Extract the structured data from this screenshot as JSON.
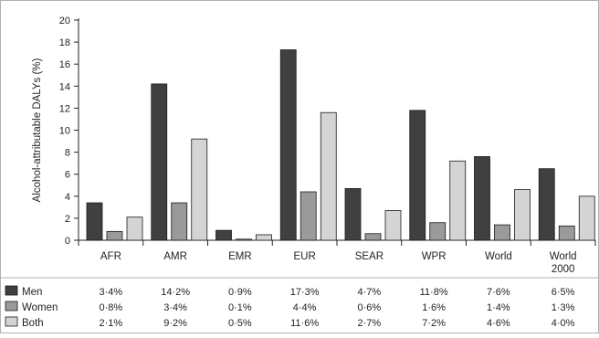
{
  "chart_data": {
    "type": "bar",
    "ylabel": "Alcohol-attributable DALYs (%)",
    "ylim": [
      0,
      20
    ],
    "yticks": [
      0,
      2,
      4,
      6,
      8,
      10,
      12,
      14,
      16,
      18,
      20
    ],
    "categories": [
      "AFR",
      "AMR",
      "EMR",
      "EUR",
      "SEAR",
      "WPR",
      "World",
      "World 2000"
    ],
    "series": [
      {
        "name": "Men",
        "color": "#404040",
        "values": [
          3.4,
          14.2,
          0.9,
          17.3,
          4.7,
          11.8,
          7.6,
          6.5
        ],
        "labels": [
          "3·4%",
          "14·2%",
          "0·9%",
          "17·3%",
          "4·7%",
          "11·8%",
          "7·6%",
          "6·5%"
        ]
      },
      {
        "name": "Women",
        "color": "#9a9a9a",
        "values": [
          0.8,
          3.4,
          0.1,
          4.4,
          0.6,
          1.6,
          1.4,
          1.3
        ],
        "labels": [
          "0·8%",
          "3·4%",
          "0·1%",
          "4·4%",
          "0·6%",
          "1·6%",
          "1·4%",
          "1·3%"
        ]
      },
      {
        "name": "Both",
        "color": "#d4d4d4",
        "values": [
          2.1,
          9.2,
          0.5,
          11.6,
          2.7,
          7.2,
          4.6,
          4.0
        ],
        "labels": [
          "2·1%",
          "9·2%",
          "0·5%",
          "11·6%",
          "2·7%",
          "7·2%",
          "4·6%",
          "4·0%"
        ]
      }
    ],
    "legend": "table-below",
    "grid": false
  }
}
